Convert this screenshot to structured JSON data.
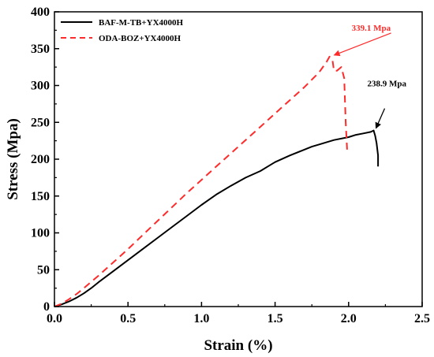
{
  "chart_data": {
    "type": "line",
    "xlabel": "Strain (%)",
    "ylabel": "Stress (Mpa)",
    "xlim": [
      0,
      2.5
    ],
    "ylim": [
      0,
      400
    ],
    "xticks": [
      "0.0",
      "0.5",
      "1.0",
      "1.5",
      "2.0",
      "2.5"
    ],
    "yticks": [
      "0",
      "50",
      "100",
      "150",
      "200",
      "250",
      "300",
      "350",
      "400"
    ],
    "grid": false,
    "legend_position": "top-left",
    "series": [
      {
        "name": "BAF-M-TB+YX4000H",
        "color": "#000000",
        "dash": "solid",
        "x": [
          0,
          0.05,
          0.1,
          0.15,
          0.2,
          0.25,
          0.3,
          0.4,
          0.5,
          0.6,
          0.7,
          0.8,
          0.9,
          1.0,
          1.1,
          1.2,
          1.3,
          1.4,
          1.45,
          1.5,
          1.6,
          1.7,
          1.75,
          1.8,
          1.9,
          2.0,
          2.05,
          2.1,
          2.15,
          2.17,
          2.18,
          2.19,
          2.2,
          2.2
        ],
        "y": [
          0,
          3,
          7,
          12,
          18,
          25,
          33,
          48,
          63,
          78,
          93,
          108,
          123,
          138,
          152,
          164,
          175,
          184,
          190,
          196,
          205,
          213,
          217,
          220,
          226,
          230,
          233,
          235,
          237,
          238.9,
          232,
          222,
          205,
          190
        ]
      },
      {
        "name": "ODA-BOZ+YX4000H",
        "color": "#ff2b2b",
        "dash": "dashed",
        "x": [
          0,
          0.05,
          0.1,
          0.15,
          0.2,
          0.3,
          0.4,
          0.5,
          0.6,
          0.7,
          0.8,
          0.9,
          1.0,
          1.1,
          1.2,
          1.3,
          1.4,
          1.5,
          1.6,
          1.7,
          1.8,
          1.85,
          1.87,
          1.89,
          1.9,
          1.92,
          1.95,
          1.97,
          1.98,
          1.99
        ],
        "y": [
          0,
          4,
          10,
          17,
          25,
          42,
          60,
          78,
          97,
          116,
          135,
          154,
          172,
          190,
          208,
          226,
          244,
          262,
          280,
          298,
          318,
          332,
          339.1,
          335,
          320,
          320,
          325,
          310,
          250,
          213
        ]
      }
    ],
    "annotations": [
      {
        "text": "339.1 Mpa",
        "color": "#ff2b2b",
        "x": 1.87,
        "y": 339.1
      },
      {
        "text": "238.9 Mpa",
        "color": "#000000",
        "x": 2.17,
        "y": 238.9
      }
    ]
  }
}
